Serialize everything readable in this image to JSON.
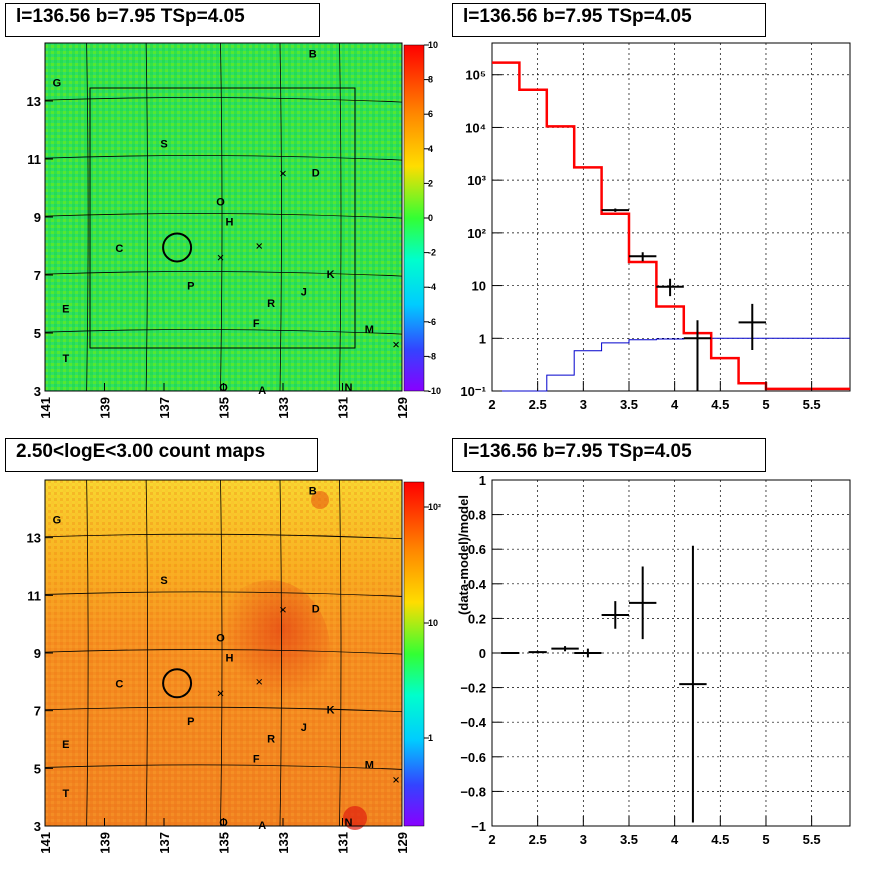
{
  "titles": {
    "tl": "l=136.56 b=7.95 TSp=4.05",
    "tr": "l=136.56 b=7.95 TSp=4.05",
    "bl": "2.50<logE<3.00 count maps",
    "br": "l=136.56 b=7.95 TSp=4.05"
  },
  "colors": {
    "model": "#ff0000",
    "background": "#0000cc",
    "data": "#000000"
  },
  "maps": {
    "x_ticks": [
      "141",
      "139",
      "137",
      "135",
      "133",
      "131",
      "129"
    ],
    "y_ticks": [
      "3",
      "5",
      "7",
      "9",
      "11",
      "13"
    ],
    "x_range": [
      141,
      129
    ],
    "y_range": [
      3,
      15
    ],
    "source_circle": {
      "l": 136.56,
      "b": 7.95
    },
    "source_labels": [
      {
        "t": "B",
        "l": 132.0,
        "b": 14.5
      },
      {
        "t": "G",
        "l": 140.6,
        "b": 13.5
      },
      {
        "t": "S",
        "l": 137.0,
        "b": 11.4
      },
      {
        "t": "D",
        "l": 131.9,
        "b": 10.4
      },
      {
        "t": "O",
        "l": 135.1,
        "b": 9.4
      },
      {
        "t": "H",
        "l": 134.8,
        "b": 8.7
      },
      {
        "t": "C",
        "l": 138.5,
        "b": 7.8
      },
      {
        "t": "K",
        "l": 131.4,
        "b": 6.9
      },
      {
        "t": "P",
        "l": 136.1,
        "b": 6.5
      },
      {
        "t": "J",
        "l": 132.3,
        "b": 6.3
      },
      {
        "t": "R",
        "l": 133.4,
        "b": 5.9
      },
      {
        "t": "E",
        "l": 140.3,
        "b": 5.7
      },
      {
        "t": "F",
        "l": 133.9,
        "b": 5.2
      },
      {
        "t": "M",
        "l": 130.1,
        "b": 5.0
      },
      {
        "t": "T",
        "l": 140.3,
        "b": 4.0
      },
      {
        "t": "O",
        "l": 135.0,
        "b": 3.0
      },
      {
        "t": "A",
        "l": 133.7,
        "b": 2.9
      },
      {
        "t": "N",
        "l": 130.8,
        "b": 3.0
      }
    ],
    "crosses": [
      {
        "l": 133.0,
        "b": 10.5
      },
      {
        "l": 133.8,
        "b": 8.0
      },
      {
        "l": 135.1,
        "b": 7.6
      },
      {
        "l": 129.2,
        "b": 4.6
      }
    ],
    "residual_scale": {
      "ticks": [
        "10",
        "8",
        "6",
        "4",
        "2",
        "0",
        "-2",
        "-4",
        "-6",
        "-8",
        "-10"
      ]
    },
    "count_scale": {
      "ticks": [
        "10²",
        "10",
        "1"
      ]
    }
  },
  "chart_data": [
    {
      "type": "line",
      "title": "l=136.56 b=7.95 TSp=4.05",
      "xlabel": "",
      "ylabel": "",
      "x_ticks": [
        "2",
        "2.5",
        "3",
        "3.5",
        "4",
        "4.5",
        "5",
        "5.5"
      ],
      "y_ticks": [
        "10⁻¹",
        "1",
        "10",
        "10²",
        "10³",
        "10⁴",
        "10⁵"
      ],
      "xlim": [
        2.0,
        5.92
      ],
      "ylim": [
        0.1,
        400000
      ],
      "yscale": "log",
      "grid": true,
      "model_steps": {
        "edges": [
          2.0,
          2.3,
          2.6,
          2.9,
          3.2,
          3.5,
          3.8,
          4.1,
          4.4,
          4.7,
          5.0,
          5.92
        ],
        "values": [
          170000,
          52000,
          10500,
          1750,
          230,
          28,
          4.0,
          1.25,
          0.42,
          0.14,
          0.11
        ]
      },
      "background_steps": {
        "edges": [
          2.0,
          2.3,
          2.6,
          2.9,
          3.2,
          3.5,
          3.8,
          4.1,
          4.4,
          4.7,
          5.0,
          5.92
        ],
        "values": [
          0.01,
          0.01,
          0.2,
          0.58,
          0.82,
          0.94,
          0.97,
          0.99,
          1.0,
          1.0,
          1.0
        ]
      },
      "data_points": [
        {
          "x": 3.35,
          "y": 270,
          "xerr": 0.15,
          "ylo": 250,
          "yhi": 290
        },
        {
          "x": 3.65,
          "y": 36,
          "xerr": 0.15,
          "ylo": 29,
          "yhi": 43
        },
        {
          "x": 3.95,
          "y": 9.5,
          "xerr": 0.15,
          "ylo": 6.3,
          "yhi": 13.5
        },
        {
          "x": 4.25,
          "y": 1.0,
          "xerr": 0.15,
          "ylo": 0.1,
          "yhi": 2.2
        },
        {
          "x": 4.85,
          "y": 2.0,
          "xerr": 0.15,
          "ylo": 0.6,
          "yhi": 4.5
        }
      ]
    },
    {
      "type": "scatter",
      "title": "l=136.56 b=7.95 TSp=4.05",
      "xlabel": "",
      "ylabel": "(data-model)/model",
      "x_ticks": [
        "2",
        "2.5",
        "3",
        "3.5",
        "4",
        "4.5",
        "5",
        "5.5"
      ],
      "y_ticks": [
        "1",
        "0.8",
        "0.6",
        "0.4",
        "0.2",
        "0",
        "−0.2",
        "−0.4",
        "−0.6",
        "−0.8",
        "−1"
      ],
      "xlim": [
        2.0,
        5.92
      ],
      "ylim": [
        -1,
        1
      ],
      "grid": true,
      "points": [
        {
          "x": 2.2,
          "y": 0.0,
          "xerr": 0.1,
          "yerr": 0.004
        },
        {
          "x": 2.5,
          "y": 0.005,
          "xerr": 0.1,
          "yerr": 0.007
        },
        {
          "x": 2.8,
          "y": 0.025,
          "xerr": 0.15,
          "yerr": 0.015
        },
        {
          "x": 3.05,
          "y": 0.0,
          "xerr": 0.15,
          "yerr": 0.025
        },
        {
          "x": 3.35,
          "y": 0.22,
          "xerr": 0.15,
          "yerr": 0.08
        },
        {
          "x": 3.65,
          "y": 0.29,
          "xerr": 0.15,
          "yerr": 0.21
        },
        {
          "x": 4.2,
          "y": -0.18,
          "xerr": 0.15,
          "yerr": 0.8
        }
      ]
    }
  ]
}
